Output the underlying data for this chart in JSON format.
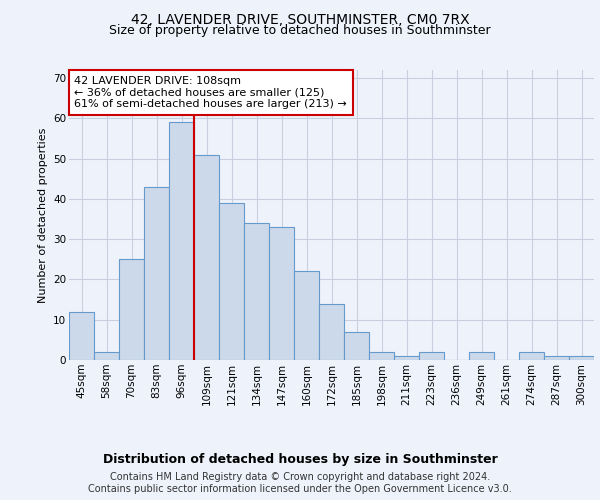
{
  "title": "42, LAVENDER DRIVE, SOUTHMINSTER, CM0 7RX",
  "subtitle": "Size of property relative to detached houses in Southminster",
  "xlabel": "Distribution of detached houses by size in Southminster",
  "ylabel": "Number of detached properties",
  "categories": [
    "45sqm",
    "58sqm",
    "70sqm",
    "83sqm",
    "96sqm",
    "109sqm",
    "121sqm",
    "134sqm",
    "147sqm",
    "160sqm",
    "172sqm",
    "185sqm",
    "198sqm",
    "211sqm",
    "223sqm",
    "236sqm",
    "249sqm",
    "261sqm",
    "274sqm",
    "287sqm",
    "300sqm"
  ],
  "values": [
    12,
    2,
    25,
    43,
    59,
    51,
    39,
    34,
    33,
    22,
    14,
    7,
    2,
    1,
    2,
    0,
    2,
    0,
    2,
    1,
    1
  ],
  "bar_color": "#ccd9ea",
  "bar_edge_color": "#6699cc",
  "bar_linewidth": 0.8,
  "property_line_index": 4.5,
  "annotation_line1": "42 LAVENDER DRIVE: 108sqm",
  "annotation_line2": "← 36% of detached houses are smaller (125)",
  "annotation_line3": "61% of semi-detached houses are larger (213) →",
  "annotation_box_color": "white",
  "annotation_box_edge_color": "#cc0000",
  "property_line_color": "#cc0000",
  "ylim": [
    0,
    72
  ],
  "yticks": [
    0,
    10,
    20,
    30,
    40,
    50,
    60,
    70
  ],
  "grid_color": "#c8d0e0",
  "bg_color": "#eef2fb",
  "plot_bg_color": "#eef2fb",
  "footer_line1": "Contains HM Land Registry data © Crown copyright and database right 2024.",
  "footer_line2": "Contains public sector information licensed under the Open Government Licence v3.0.",
  "title_fontsize": 10,
  "subtitle_fontsize": 9,
  "xlabel_fontsize": 9,
  "ylabel_fontsize": 8,
  "tick_fontsize": 7.5,
  "annotation_fontsize": 8,
  "footer_fontsize": 7
}
